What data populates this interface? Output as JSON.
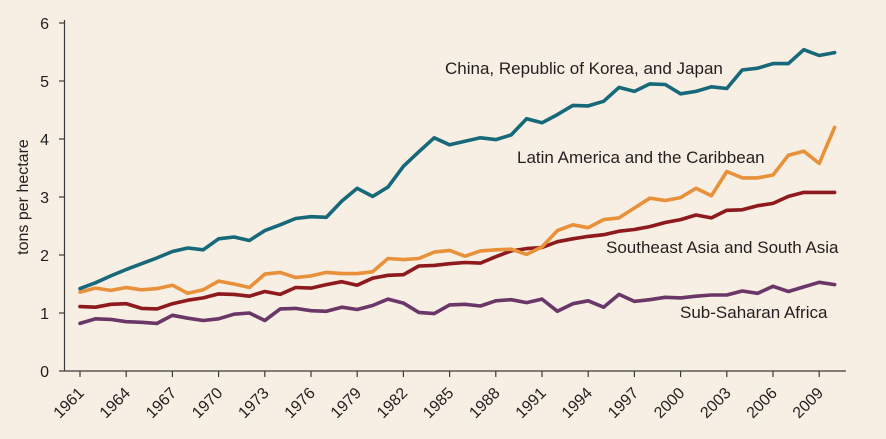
{
  "colors": {
    "background": "#f7efe3",
    "axis": "#3a3a3a",
    "text": "#231f20"
  },
  "chart_data": {
    "type": "line",
    "ylabel": "tons per hectare",
    "xlim": [
      1961,
      2010
    ],
    "ylim": [
      0,
      6
    ],
    "grid": false,
    "legend": "none",
    "y_ticks": [
      "0",
      "1",
      "2",
      "3",
      "4",
      "5",
      "6"
    ],
    "x_ticks": [
      "1961",
      "1964",
      "1967",
      "1970",
      "1973",
      "1976",
      "1979",
      "1982",
      "1985",
      "1988",
      "1991",
      "1994",
      "1997",
      "2000",
      "2003",
      "2006",
      "2009"
    ],
    "x": [
      1961,
      1962,
      1963,
      1964,
      1965,
      1966,
      1967,
      1968,
      1969,
      1970,
      1971,
      1972,
      1973,
      1974,
      1975,
      1976,
      1977,
      1978,
      1979,
      1980,
      1981,
      1982,
      1983,
      1984,
      1985,
      1986,
      1987,
      1988,
      1989,
      1990,
      1991,
      1992,
      1993,
      1994,
      1995,
      1996,
      1997,
      1998,
      1999,
      2000,
      2001,
      2002,
      2003,
      2004,
      2005,
      2006,
      2007,
      2008,
      2009,
      2010
    ],
    "series": [
      {
        "name": "China, Republic of Korea, and Japan",
        "color": "#17697a",
        "values": [
          1.42,
          1.52,
          1.64,
          1.75,
          1.85,
          1.95,
          2.06,
          2.12,
          2.09,
          2.28,
          2.31,
          2.25,
          2.42,
          2.52,
          2.63,
          2.66,
          2.65,
          2.93,
          3.15,
          3.01,
          3.17,
          3.53,
          3.78,
          4.02,
          3.9,
          3.96,
          4.02,
          3.99,
          4.07,
          4.35,
          4.28,
          4.42,
          4.58,
          4.57,
          4.65,
          4.89,
          4.82,
          4.95,
          4.94,
          4.78,
          4.82,
          4.9,
          4.87,
          5.19,
          5.22,
          5.3,
          5.3,
          5.54,
          5.44,
          5.49
        ]
      },
      {
        "name": "Latin America and the Caribbean",
        "color": "#e8913a",
        "values": [
          1.36,
          1.43,
          1.39,
          1.44,
          1.4,
          1.42,
          1.48,
          1.34,
          1.4,
          1.55,
          1.5,
          1.44,
          1.67,
          1.7,
          1.61,
          1.64,
          1.7,
          1.68,
          1.68,
          1.71,
          1.94,
          1.92,
          1.94,
          2.05,
          2.08,
          1.98,
          2.07,
          2.09,
          2.1,
          2.01,
          2.14,
          2.42,
          2.52,
          2.47,
          2.61,
          2.64,
          2.81,
          2.98,
          2.94,
          2.99,
          3.15,
          3.02,
          3.44,
          3.33,
          3.33,
          3.38,
          3.72,
          3.79,
          3.58,
          4.2
        ]
      },
      {
        "name": "Southeast Asia and South Asia",
        "color": "#8e1a1d",
        "values": [
          1.11,
          1.1,
          1.15,
          1.16,
          1.08,
          1.07,
          1.16,
          1.22,
          1.26,
          1.33,
          1.32,
          1.29,
          1.37,
          1.32,
          1.44,
          1.43,
          1.49,
          1.54,
          1.48,
          1.6,
          1.65,
          1.66,
          1.81,
          1.82,
          1.85,
          1.87,
          1.86,
          1.97,
          2.07,
          2.11,
          2.13,
          2.23,
          2.28,
          2.32,
          2.35,
          2.41,
          2.44,
          2.49,
          2.56,
          2.61,
          2.69,
          2.64,
          2.77,
          2.78,
          2.85,
          2.89,
          3.01,
          3.08,
          3.08,
          3.08
        ]
      },
      {
        "name": "Sub-Saharan Africa",
        "color": "#6a3768",
        "values": [
          0.82,
          0.9,
          0.89,
          0.85,
          0.84,
          0.82,
          0.96,
          0.91,
          0.87,
          0.9,
          0.98,
          1.0,
          0.87,
          1.07,
          1.08,
          1.04,
          1.03,
          1.1,
          1.06,
          1.13,
          1.24,
          1.17,
          1.01,
          0.99,
          1.14,
          1.15,
          1.12,
          1.21,
          1.23,
          1.18,
          1.24,
          1.03,
          1.16,
          1.21,
          1.1,
          1.32,
          1.2,
          1.23,
          1.27,
          1.26,
          1.29,
          1.31,
          1.31,
          1.38,
          1.34,
          1.46,
          1.37,
          1.45,
          1.53,
          1.49
        ]
      }
    ]
  }
}
